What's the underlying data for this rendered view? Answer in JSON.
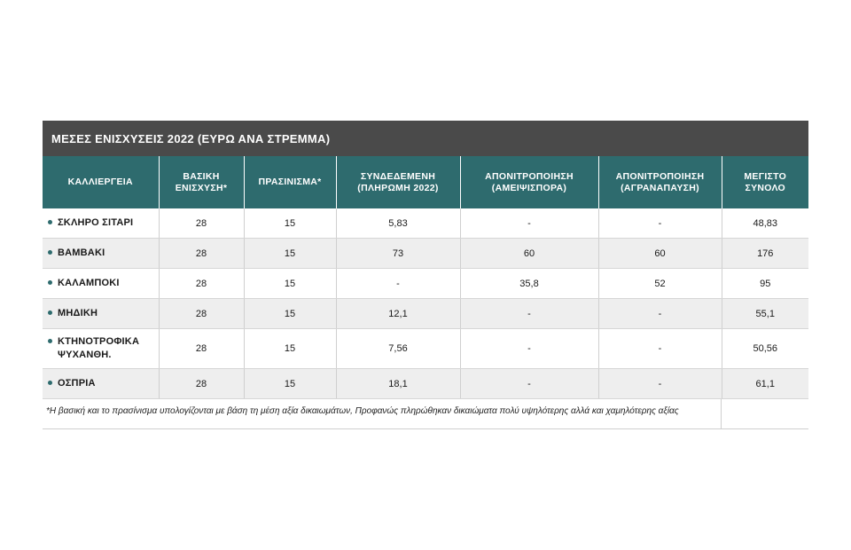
{
  "title": "ΜΕΣΕΣ ΕΝΙΣΧΥΣΕΙΣ 2022 (ΕΥΡΩ ΑΝΑ ΣΤΡΕΜΜΑ)",
  "columns": [
    "ΚΑΛΛΙΕΡΓΕΙΑ",
    "ΒΑΣΙΚΗ\nΕΝΙΣΧΥΣΗ*",
    "ΠΡΑΣΙΝΙΣΜΑ*",
    "ΣΥΝΔΕΔΕΜΕΝΗ\n(ΠΛΗΡΩΜΗ 2022)",
    "ΑΠΟΝΙΤΡΟΠΟΙΗΣΗ\n(ΑΜΕΙΨΙΣΠΟΡΑ)",
    "ΑΠΟΝΙΤΡΟΠΟΙΗΣΗ\n(ΑΓΡΑΝΑΠΑΥΣΗ)",
    "ΜΕΓΙΣΤΟ\nΣΥΝΟΛΟ"
  ],
  "rows": [
    [
      "ΣΚΛΗΡΟ ΣΙΤΑΡΙ",
      "28",
      "15",
      "5,83",
      "-",
      "-",
      "48,83"
    ],
    [
      "ΒΑΜΒΑΚΙ",
      "28",
      "15",
      "73",
      "60",
      "60",
      "176"
    ],
    [
      "ΚΑΛΑΜΠΟΚΙ",
      "28",
      "15",
      "-",
      "35,8",
      "52",
      "95"
    ],
    [
      "ΜΗΔΙΚΗ",
      "28",
      "15",
      "12,1",
      "-",
      "-",
      "55,1"
    ],
    [
      "ΚΤΗΝΟΤΡΟΦΙΚΑ\nΨΥΧΑΝΘΗ.",
      "28",
      "15",
      "7,56",
      "-",
      "-",
      "50,56"
    ],
    [
      "ΟΣΠΡΙΑ",
      "28",
      "15",
      "18,1",
      "-",
      "-",
      "61,1"
    ]
  ],
  "footnote": "*Η βασική και το πρασίνισμα υπολογίζονται με βάση τη μέση αξία δικαιωμάτων, Προφανώς πληρώθηκαν δικαιώματα πολύ υψηλότερης αλλά και χαμηλότερης αξίας",
  "colors": {
    "title_bg": "#4a4a4a",
    "header_bg": "#2e6b6e",
    "row_alt_bg": "#eeeeee",
    "bullet": "#2e6b6e"
  }
}
